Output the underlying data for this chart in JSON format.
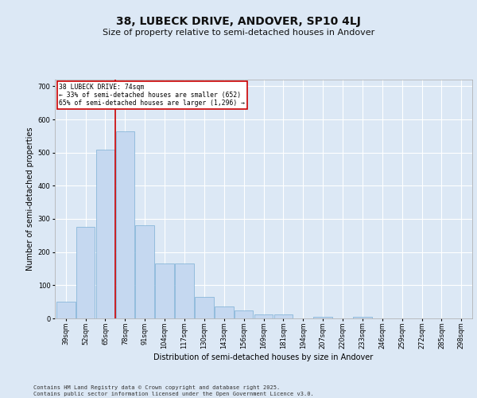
{
  "title1": "38, LUBECK DRIVE, ANDOVER, SP10 4LJ",
  "title2": "Size of property relative to semi-detached houses in Andover",
  "xlabel": "Distribution of semi-detached houses by size in Andover",
  "ylabel": "Number of semi-detached properties",
  "categories": [
    "39sqm",
    "52sqm",
    "65sqm",
    "78sqm",
    "91sqm",
    "104sqm",
    "117sqm",
    "130sqm",
    "143sqm",
    "156sqm",
    "169sqm",
    "181sqm",
    "194sqm",
    "207sqm",
    "220sqm",
    "233sqm",
    "246sqm",
    "259sqm",
    "272sqm",
    "285sqm",
    "298sqm"
  ],
  "values": [
    50,
    275,
    510,
    565,
    280,
    165,
    165,
    65,
    37,
    25,
    12,
    12,
    0,
    5,
    0,
    5,
    0,
    0,
    0,
    0,
    0
  ],
  "bar_color": "#c5d8f0",
  "bar_edge_color": "#7bafd4",
  "red_line_x": 2.5,
  "annotation_title": "38 LUBECK DRIVE: 74sqm",
  "annotation_line1": "← 33% of semi-detached houses are smaller (652)",
  "annotation_line2": "65% of semi-detached houses are larger (1,296) →",
  "annotation_box_color": "#ffffff",
  "annotation_border_color": "#cc0000",
  "red_line_color": "#cc0000",
  "ylim": [
    0,
    720
  ],
  "yticks": [
    0,
    100,
    200,
    300,
    400,
    500,
    600,
    700
  ],
  "footer": "Contains HM Land Registry data © Crown copyright and database right 2025.\nContains public sector information licensed under the Open Government Licence v3.0.",
  "bg_color": "#dce8f5",
  "plot_bg_color": "#dce8f5",
  "grid_color": "#ffffff",
  "title1_fontsize": 10,
  "title2_fontsize": 8,
  "axis_fontsize": 7,
  "tick_fontsize": 6,
  "footer_fontsize": 5
}
